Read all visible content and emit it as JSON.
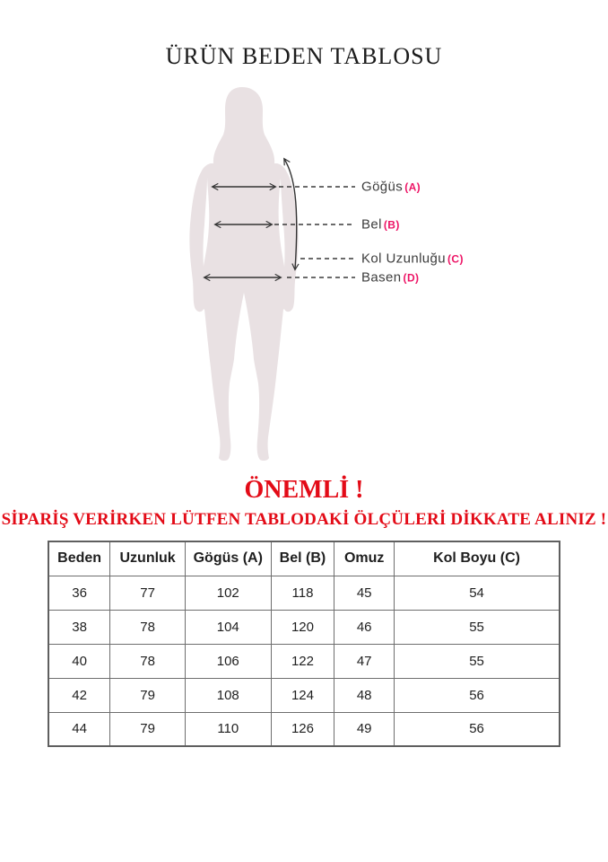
{
  "page": {
    "title": "ÜRÜN BEDEN TABLOSU"
  },
  "figure": {
    "description": "female-body-silhouette-with-measurement-arrows",
    "labels": [
      {
        "name": "Göğüs",
        "letter": "(A)"
      },
      {
        "name": "Bel",
        "letter": "(B)"
      },
      {
        "name": "Kol Uzunluğu",
        "letter": "(C)"
      },
      {
        "name": "Basen",
        "letter": "(D)"
      }
    ]
  },
  "notice": {
    "heading": "ÖNEMLİ !",
    "subtitle": "SİPARİŞ VERİRKEN LÜTFEN TABLODAKİ ÖLÇÜLERİ DİKKATE ALINIZ !"
  },
  "size_table": {
    "headers": [
      "Beden",
      "Uzunluk",
      "Gögüs (A)",
      "Bel (B)",
      "Omuz",
      "Kol Boyu (C)"
    ],
    "rows": [
      [
        "36",
        "77",
        "102",
        "118",
        "45",
        "54"
      ],
      [
        "38",
        "78",
        "104",
        "120",
        "46",
        "55"
      ],
      [
        "40",
        "78",
        "106",
        "122",
        "47",
        "55"
      ],
      [
        "42",
        "79",
        "108",
        "124",
        "48",
        "56"
      ],
      [
        "44",
        "79",
        "110",
        "126",
        "49",
        "56"
      ]
    ]
  },
  "colors": {
    "accent_red": "#e30b17",
    "accent_pink": "#ed1566",
    "label_text": "#3d3d3d",
    "silhouette": "#e9e1e3",
    "table_border": "#6e6e6e"
  }
}
